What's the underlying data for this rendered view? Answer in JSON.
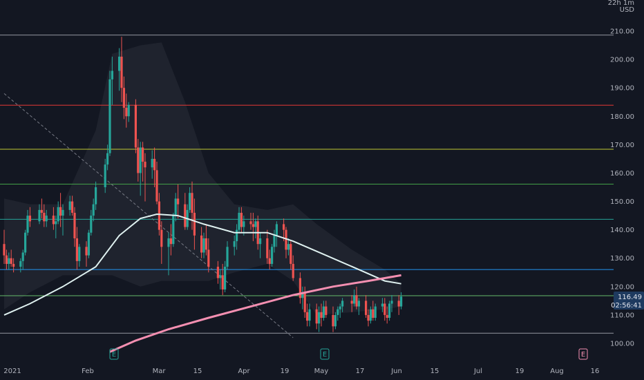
{
  "chart_data": {
    "type": "candlestick",
    "currency": "USD",
    "axis_corner": "22h 1m",
    "ylim": [
      97,
      213
    ],
    "y_ticks": [
      "100.00",
      "110.00",
      "120.00",
      "130.00",
      "140.00",
      "150.00",
      "160.00",
      "170.00",
      "180.00",
      "190.00",
      "200.00",
      "210.00"
    ],
    "x_ticks": [
      "2021",
      "Feb",
      "Mar",
      "15",
      "Apr",
      "19",
      "May",
      "17",
      "Jun",
      "15",
      "Jul",
      "19",
      "Aug",
      "16"
    ],
    "current_price": "116.49",
    "countdown": "02:56:41",
    "earnings_markers": [
      "E",
      "E",
      "E"
    ],
    "colors": {
      "up": "#26a69a",
      "down": "#ef5350",
      "background": "#131722",
      "ma_fast": "#e0f2f1",
      "ma_slow": "#f48fb1",
      "cloud": "#2a2e39"
    },
    "horizontal_levels": [
      {
        "price": 208.6,
        "color": "#9598a1"
      },
      {
        "price": 183.9,
        "color": "#e53935"
      },
      {
        "price": 168.4,
        "color": "#c0ca33"
      },
      {
        "price": 156.1,
        "color": "#43a047"
      },
      {
        "price": 143.7,
        "color": "#26a69a"
      },
      {
        "price": 126.0,
        "color": "#2196f3"
      },
      {
        "price": 116.8,
        "color": "#66bb6a"
      },
      {
        "price": 103.6,
        "color": "#9598a1"
      }
    ],
    "candles": [
      {
        "date": "Jan 4",
        "o": 135,
        "h": 140,
        "l": 128,
        "c": 131
      },
      {
        "date": "Jan 5",
        "o": 131,
        "h": 133,
        "l": 126,
        "c": 128
      },
      {
        "date": "Jan 6",
        "o": 128,
        "h": 132,
        "l": 126,
        "c": 130
      },
      {
        "date": "Jan 7",
        "o": 130,
        "h": 133,
        "l": 127,
        "c": 128
      },
      {
        "date": "Jan 8",
        "o": 128,
        "h": 130,
        "l": 125,
        "c": 127
      },
      {
        "date": "Jan 11",
        "o": 127,
        "h": 130,
        "l": 125,
        "c": 129
      },
      {
        "date": "Jan 12",
        "o": 129,
        "h": 133,
        "l": 126,
        "c": 132
      },
      {
        "date": "Jan 13",
        "o": 132,
        "h": 140,
        "l": 131,
        "c": 139
      },
      {
        "date": "Jan 14",
        "o": 139,
        "h": 147,
        "l": 138,
        "c": 145
      },
      {
        "date": "Jan 15",
        "o": 145,
        "h": 148,
        "l": 141,
        "c": 143
      },
      {
        "date": "Jan 19",
        "o": 143,
        "h": 149,
        "l": 142,
        "c": 147
      },
      {
        "date": "Jan 20",
        "o": 147,
        "h": 151,
        "l": 144,
        "c": 146
      },
      {
        "date": "Jan 21",
        "o": 146,
        "h": 149,
        "l": 141,
        "c": 143
      },
      {
        "date": "Jan 22",
        "o": 143,
        "h": 147,
        "l": 141,
        "c": 145
      },
      {
        "date": "Jan 25",
        "o": 145,
        "h": 148,
        "l": 140,
        "c": 142
      },
      {
        "date": "Jan 26",
        "o": 142,
        "h": 145,
        "l": 137,
        "c": 143
      },
      {
        "date": "Jan 27",
        "o": 143,
        "h": 150,
        "l": 142,
        "c": 148
      },
      {
        "date": "Jan 28",
        "o": 148,
        "h": 153,
        "l": 141,
        "c": 145
      },
      {
        "date": "Jan 29",
        "o": 145,
        "h": 149,
        "l": 138,
        "c": 147
      },
      {
        "date": "Feb 1",
        "o": 147,
        "h": 152,
        "l": 145,
        "c": 150
      },
      {
        "date": "Feb 2",
        "o": 150,
        "h": 152,
        "l": 145,
        "c": 146
      },
      {
        "date": "Feb 3",
        "o": 146,
        "h": 148,
        "l": 134,
        "c": 137
      },
      {
        "date": "Feb 4",
        "o": 137,
        "h": 141,
        "l": 126,
        "c": 129
      },
      {
        "date": "Feb 5",
        "o": 129,
        "h": 135,
        "l": 127,
        "c": 134
      },
      {
        "date": "Feb 8",
        "o": 134,
        "h": 136,
        "l": 127,
        "c": 131
      },
      {
        "date": "Feb 9",
        "o": 131,
        "h": 140,
        "l": 130,
        "c": 139
      },
      {
        "date": "Feb 10",
        "o": 139,
        "h": 147,
        "l": 138,
        "c": 145
      },
      {
        "date": "Feb 11",
        "o": 145,
        "h": 151,
        "l": 143,
        "c": 149
      },
      {
        "date": "Feb 12",
        "o": 149,
        "h": 157,
        "l": 147,
        "c": 155
      },
      {
        "date": "Feb 16",
        "o": 155,
        "h": 165,
        "l": 153,
        "c": 163
      },
      {
        "date": "Feb 17",
        "o": 163,
        "h": 170,
        "l": 161,
        "c": 167
      },
      {
        "date": "Feb 18",
        "o": 167,
        "h": 196,
        "l": 166,
        "c": 193
      },
      {
        "date": "Feb 19",
        "o": 193,
        "h": 201,
        "l": 184,
        "c": 196
      },
      {
        "date": "Feb 22",
        "o": 196,
        "h": 204,
        "l": 189,
        "c": 201
      },
      {
        "date": "Feb 23",
        "o": 201,
        "h": 208,
        "l": 185,
        "c": 190
      },
      {
        "date": "Feb 24",
        "o": 190,
        "h": 194,
        "l": 179,
        "c": 183
      },
      {
        "date": "Feb 25",
        "o": 183,
        "h": 188,
        "l": 176,
        "c": 180
      },
      {
        "date": "Feb 26",
        "o": 180,
        "h": 185,
        "l": 178,
        "c": 184
      },
      {
        "date": "Mar 1",
        "o": 184,
        "h": 186,
        "l": 167,
        "c": 169
      },
      {
        "date": "Mar 2",
        "o": 169,
        "h": 172,
        "l": 157,
        "c": 160
      },
      {
        "date": "Mar 3",
        "o": 160,
        "h": 171,
        "l": 152,
        "c": 169
      },
      {
        "date": "Mar 4",
        "o": 169,
        "h": 171,
        "l": 157,
        "c": 164
      },
      {
        "date": "Mar 5",
        "o": 164,
        "h": 167,
        "l": 150,
        "c": 162
      },
      {
        "date": "Mar 8",
        "o": 162,
        "h": 168,
        "l": 158,
        "c": 165
      },
      {
        "date": "Mar 9",
        "o": 165,
        "h": 169,
        "l": 155,
        "c": 161
      },
      {
        "date": "Mar 10",
        "o": 161,
        "h": 164,
        "l": 149,
        "c": 150
      },
      {
        "date": "Mar 11",
        "o": 150,
        "h": 153,
        "l": 138,
        "c": 140
      },
      {
        "date": "Mar 12",
        "o": 140,
        "h": 143,
        "l": 128,
        "c": 134
      },
      {
        "date": "Mar 15",
        "o": 134,
        "h": 139,
        "l": 124,
        "c": 137
      },
      {
        "date": "Mar 16",
        "o": 137,
        "h": 142,
        "l": 131,
        "c": 135
      },
      {
        "date": "Mar 17",
        "o": 135,
        "h": 146,
        "l": 134,
        "c": 145
      },
      {
        "date": "Mar 18",
        "o": 145,
        "h": 153,
        "l": 143,
        "c": 151
      },
      {
        "date": "Mar 19",
        "o": 151,
        "h": 156,
        "l": 144,
        "c": 149
      },
      {
        "date": "Mar 22",
        "o": 149,
        "h": 153,
        "l": 140,
        "c": 141
      },
      {
        "date": "Mar 23",
        "o": 141,
        "h": 149,
        "l": 140,
        "c": 147
      },
      {
        "date": "Mar 24",
        "o": 147,
        "h": 155,
        "l": 146,
        "c": 153
      },
      {
        "date": "Mar 25",
        "o": 153,
        "h": 157,
        "l": 140,
        "c": 146
      },
      {
        "date": "Mar 26",
        "o": 146,
        "h": 151,
        "l": 133,
        "c": 138
      },
      {
        "date": "Mar 29",
        "o": 138,
        "h": 141,
        "l": 130,
        "c": 132
      },
      {
        "date": "Mar 30",
        "o": 132,
        "h": 139,
        "l": 130,
        "c": 137
      },
      {
        "date": "Mar 31",
        "o": 137,
        "h": 142,
        "l": 131,
        "c": 133
      },
      {
        "date": "Apr 1",
        "o": 133,
        "h": 137,
        "l": 125,
        "c": 127
      },
      {
        "date": "Apr 5",
        "o": 127,
        "h": 129,
        "l": 121,
        "c": 123
      },
      {
        "date": "Apr 6",
        "o": 123,
        "h": 126,
        "l": 119,
        "c": 124
      },
      {
        "date": "Apr 7",
        "o": 124,
        "h": 128,
        "l": 117,
        "c": 119
      },
      {
        "date": "Apr 8",
        "o": 119,
        "h": 129,
        "l": 118,
        "c": 127
      },
      {
        "date": "Apr 9",
        "o": 127,
        "h": 136,
        "l": 126,
        "c": 134
      },
      {
        "date": "Apr 12",
        "o": 134,
        "h": 138,
        "l": 131,
        "c": 136
      },
      {
        "date": "Apr 13",
        "o": 136,
        "h": 142,
        "l": 133,
        "c": 140
      },
      {
        "date": "Apr 14",
        "o": 140,
        "h": 148,
        "l": 139,
        "c": 146
      },
      {
        "date": "Apr 15",
        "o": 146,
        "h": 148,
        "l": 139,
        "c": 141
      },
      {
        "date": "Apr 16",
        "o": 141,
        "h": 145,
        "l": 138,
        "c": 143
      },
      {
        "date": "Apr 19",
        "o": 143,
        "h": 146,
        "l": 140,
        "c": 142
      },
      {
        "date": "Apr 20",
        "o": 142,
        "h": 146,
        "l": 136,
        "c": 141
      },
      {
        "date": "Apr 21",
        "o": 141,
        "h": 144,
        "l": 137,
        "c": 143
      },
      {
        "date": "Apr 22",
        "o": 143,
        "h": 145,
        "l": 133,
        "c": 135
      },
      {
        "date": "Apr 23",
        "o": 135,
        "h": 139,
        "l": 130,
        "c": 137
      },
      {
        "date": "Apr 26",
        "o": 137,
        "h": 140,
        "l": 128,
        "c": 130
      },
      {
        "date": "Apr 27",
        "o": 130,
        "h": 133,
        "l": 126,
        "c": 128
      },
      {
        "date": "Apr 28",
        "o": 128,
        "h": 135,
        "l": 127,
        "c": 134
      },
      {
        "date": "Apr 29",
        "o": 134,
        "h": 140,
        "l": 132,
        "c": 138
      },
      {
        "date": "Apr 30",
        "o": 138,
        "h": 143,
        "l": 134,
        "c": 142
      },
      {
        "date": "May 3",
        "o": 142,
        "h": 144,
        "l": 136,
        "c": 140
      },
      {
        "date": "May 4",
        "o": 140,
        "h": 141,
        "l": 130,
        "c": 133
      },
      {
        "date": "May 5",
        "o": 133,
        "h": 137,
        "l": 131,
        "c": 135
      },
      {
        "date": "May 6",
        "o": 135,
        "h": 136,
        "l": 126,
        "c": 128
      },
      {
        "date": "May 7",
        "o": 128,
        "h": 131,
        "l": 122,
        "c": 123
      },
      {
        "date": "May 10",
        "o": 123,
        "h": 125,
        "l": 114,
        "c": 116
      },
      {
        "date": "May 11",
        "o": 116,
        "h": 120,
        "l": 112,
        "c": 118
      },
      {
        "date": "May 12",
        "o": 118,
        "h": 120,
        "l": 109,
        "c": 111
      },
      {
        "date": "May 13",
        "o": 111,
        "h": 114,
        "l": 106,
        "c": 108
      },
      {
        "date": "May 14",
        "o": 108,
        "h": 114,
        "l": 106,
        "c": 112
      },
      {
        "date": "May 17",
        "o": 112,
        "h": 114,
        "l": 105,
        "c": 107
      },
      {
        "date": "May 18",
        "o": 107,
        "h": 113,
        "l": 104,
        "c": 111
      },
      {
        "date": "May 19",
        "o": 111,
        "h": 114,
        "l": 106,
        "c": 109
      },
      {
        "date": "May 20",
        "o": 109,
        "h": 115,
        "l": 108,
        "c": 113
      },
      {
        "date": "May 21",
        "o": 113,
        "h": 115,
        "l": 109,
        "c": 110
      },
      {
        "date": "May 24",
        "o": 110,
        "h": 113,
        "l": 104,
        "c": 106
      },
      {
        "date": "May 25",
        "o": 106,
        "h": 111,
        "l": 105,
        "c": 110
      },
      {
        "date": "May 26",
        "o": 110,
        "h": 113,
        "l": 108,
        "c": 112
      },
      {
        "date": "May 27",
        "o": 112,
        "h": 114,
        "l": 109,
        "c": 113
      },
      {
        "date": "May 28",
        "o": 113,
        "h": 116,
        "l": 111,
        "c": 115
      },
      {
        "date": "Jun 1",
        "o": 115,
        "h": 117,
        "l": 111,
        "c": 114
      },
      {
        "date": "Jun 2",
        "o": 114,
        "h": 119,
        "l": 113,
        "c": 117
      },
      {
        "date": "Jun 3",
        "o": 117,
        "h": 120,
        "l": 112,
        "c": 113
      },
      {
        "date": "Jun 4",
        "o": 113,
        "h": 116,
        "l": 110,
        "c": 115
      },
      {
        "date": "Jun 7",
        "o": 115,
        "h": 117,
        "l": 109,
        "c": 110
      },
      {
        "date": "Jun 8",
        "o": 110,
        "h": 112,
        "l": 106,
        "c": 108
      },
      {
        "date": "Jun 9",
        "o": 108,
        "h": 113,
        "l": 107,
        "c": 112
      },
      {
        "date": "Jun 10",
        "o": 112,
        "h": 115,
        "l": 108,
        "c": 109
      },
      {
        "date": "Jun 11",
        "o": 109,
        "h": 114,
        "l": 108,
        "c": 113
      },
      {
        "date": "Jun 14",
        "o": 113,
        "h": 116,
        "l": 111,
        "c": 114
      },
      {
        "date": "Jun 15",
        "o": 114,
        "h": 116,
        "l": 108,
        "c": 110
      },
      {
        "date": "Jun 16",
        "o": 110,
        "h": 113,
        "l": 107,
        "c": 109
      },
      {
        "date": "Jun 17",
        "o": 109,
        "h": 115,
        "l": 108,
        "c": 114
      },
      {
        "date": "Jun 18",
        "o": 114,
        "h": 117,
        "l": 111,
        "c": 115
      },
      {
        "date": "Jun 21",
        "o": 115,
        "h": 117,
        "l": 110,
        "c": 113
      },
      {
        "date": "Jun 22",
        "o": 113,
        "h": 118,
        "l": 112,
        "c": 116.49
      }
    ],
    "ma_fast": [
      {
        "date": "Jan 4",
        "v": 110
      },
      {
        "date": "Jan 15",
        "v": 114
      },
      {
        "date": "Jan 29",
        "v": 120
      },
      {
        "date": "Feb 12",
        "v": 127
      },
      {
        "date": "Feb 22",
        "v": 138
      },
      {
        "date": "Mar 3",
        "v": 144
      },
      {
        "date": "Mar 10",
        "v": 145.5
      },
      {
        "date": "Mar 19",
        "v": 145
      },
      {
        "date": "Mar 30",
        "v": 142
      },
      {
        "date": "Apr 12",
        "v": 139
      },
      {
        "date": "Apr 26",
        "v": 139
      },
      {
        "date": "May 7",
        "v": 136
      },
      {
        "date": "May 21",
        "v": 131
      },
      {
        "date": "Jun 4",
        "v": 126
      },
      {
        "date": "Jun 15",
        "v": 122
      },
      {
        "date": "Jun 22",
        "v": 121
      }
    ],
    "ma_slow": [
      {
        "date": "Feb 18",
        "v": 97
      },
      {
        "date": "Mar 1",
        "v": 101
      },
      {
        "date": "Mar 15",
        "v": 105
      },
      {
        "date": "Apr 1",
        "v": 109
      },
      {
        "date": "Apr 19",
        "v": 113
      },
      {
        "date": "May 7",
        "v": 117
      },
      {
        "date": "May 24",
        "v": 120
      },
      {
        "date": "Jun 8",
        "v": 122
      },
      {
        "date": "Jun 22",
        "v": 124
      }
    ],
    "cloud": [
      {
        "date": "Jan 4",
        "u": 151,
        "l": 112
      },
      {
        "date": "Jan 15",
        "u": 149,
        "l": 118
      },
      {
        "date": "Jan 29",
        "u": 149,
        "l": 124
      },
      {
        "date": "Feb 12",
        "u": 175,
        "l": 124
      },
      {
        "date": "Feb 19",
        "u": 202,
        "l": 124
      },
      {
        "date": "Mar 3",
        "u": 205,
        "l": 120
      },
      {
        "date": "Mar 12",
        "u": 206,
        "l": 122
      },
      {
        "date": "Mar 22",
        "u": 185,
        "l": 122
      },
      {
        "date": "Apr 1",
        "u": 160,
        "l": 122
      },
      {
        "date": "Apr 12",
        "u": 149,
        "l": 125
      },
      {
        "date": "Apr 26",
        "u": 147,
        "l": 128
      },
      {
        "date": "May 7",
        "u": 149,
        "l": 122
      },
      {
        "date": "May 17",
        "u": 142,
        "l": 110
      },
      {
        "date": "Jun 1",
        "u": 133,
        "l": 111
      },
      {
        "date": "Jun 15",
        "u": 126,
        "l": 112
      },
      {
        "date": "Jun 22",
        "u": 121,
        "l": 113
      }
    ],
    "trendline": {
      "start": {
        "date": "Jan 4",
        "v": 188
      },
      "end": {
        "date": "May 7",
        "v": 102
      }
    }
  }
}
